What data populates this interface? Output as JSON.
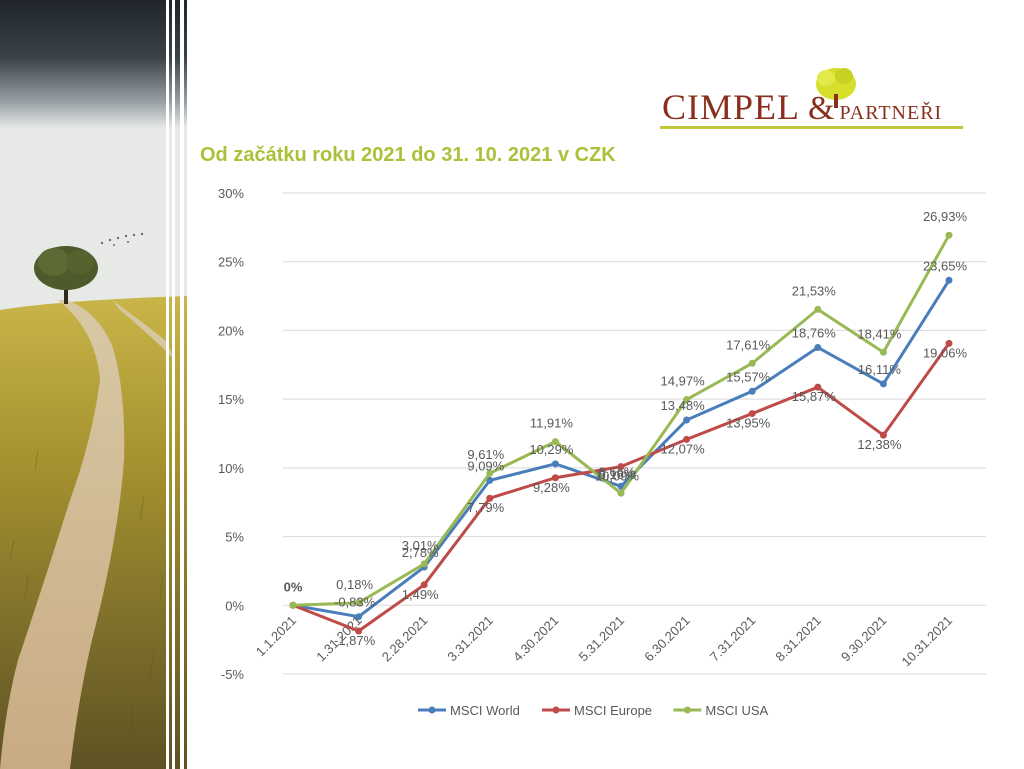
{
  "logo": {
    "name": "CIMPEL",
    "amp": "&",
    "partners": "PARTNEŘI"
  },
  "slide_title": "Od začátku roku 2021 do 31. 10. 2021 v CZK",
  "colors": {
    "title": "#a9c23a",
    "logo_text": "#8a2f1f",
    "logo_accent": "#c2c837",
    "grid": "#d9d9d9",
    "axis_text": "#595959"
  },
  "chart_data": {
    "type": "line",
    "title": "",
    "xlabel": "",
    "ylabel": "",
    "ylim": [
      -5,
      30
    ],
    "y_ticks": [
      -5,
      0,
      5,
      10,
      15,
      20,
      25,
      30
    ],
    "y_tick_labels": [
      "-5%",
      "0%",
      "5%",
      "10%",
      "15%",
      "20%",
      "25%",
      "30%"
    ],
    "grid": true,
    "legend": "bottom",
    "categories": [
      "1.1.2021",
      "1.31.2021",
      "2.28.2021",
      "3.31.2021",
      "4.30.2021",
      "5.31.2021",
      "6.30.2021",
      "7.31.2021",
      "8.31.2021",
      "9.30.2021",
      "10.31.2021"
    ],
    "series": [
      {
        "name": "MSCI World",
        "color": "#4a7ebb",
        "values": [
          0,
          -0.83,
          2.78,
          9.09,
          10.29,
          8.66,
          13.48,
          15.57,
          18.76,
          16.11,
          23.65
        ],
        "labels": [
          "0%",
          "-0,83%",
          "2,78%",
          "9,09%",
          "10,29%",
          "8,66%",
          "13,48%",
          "15,57%",
          "18,76%",
          "16,11%",
          "23,65%"
        ]
      },
      {
        "name": "MSCI Europe",
        "color": "#be4b48",
        "values": [
          0,
          -1.87,
          1.49,
          7.79,
          9.28,
          10.09,
          12.07,
          13.95,
          15.87,
          12.38,
          19.06
        ],
        "labels": [
          "0%",
          "-1,87%",
          "1,49%",
          "7,79%",
          "9,28%",
          "10,09%",
          "12,07%",
          "13,95%",
          "15,87%",
          "12,38%",
          "19,06%"
        ]
      },
      {
        "name": "MSCI USA",
        "color": "#98b954",
        "values": [
          0,
          0.18,
          3.01,
          9.61,
          11.91,
          8.16,
          14.97,
          17.61,
          21.53,
          18.41,
          26.93
        ],
        "labels": [
          "0%",
          "0,18%",
          "3,01%",
          "9,61%",
          "11,91%",
          "8,16%",
          "14,97%",
          "17,61%",
          "21,53%",
          "18,41%",
          "26,93%"
        ]
      }
    ]
  }
}
